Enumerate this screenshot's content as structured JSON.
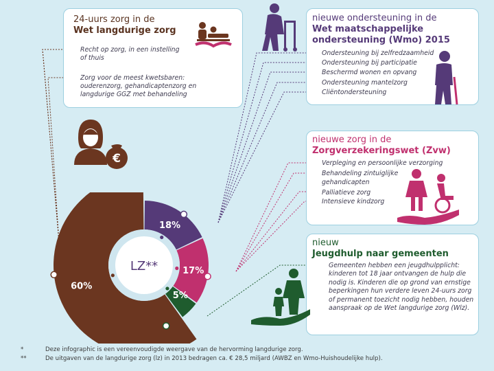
{
  "colors": {
    "background": "#d6ecf3",
    "brown": "#6b3620",
    "purple": "#553a78",
    "pink": "#c0306e",
    "green": "#1f5c2e",
    "ring": "#cfe6ef"
  },
  "wlz_card": {
    "title_line1": "24-uurs zorg in de",
    "title_line2": "Wet langdurige zorg",
    "icon": "care-bed-icon",
    "items": [
      "Recht op zorg, in een instelling",
      "of thuis",
      "Zorg voor de meest kwetsbaren:",
      "ouderenzorg, gehandicaptenzorg en",
      "langdurige GGZ met behandeling"
    ]
  },
  "wmo_card": {
    "title_line1": "nieuwe ondersteuning in de",
    "title_line2": "Wet maatschappelijke",
    "title_line3": "ondersteuning (Wmo) 2015",
    "icon": "elderly-walker-icon",
    "items": [
      "Ondersteuning bij zelfredzaamheid",
      "Ondersteuning bij participatie",
      "Beschermd wonen en opvang",
      "Ondersteuning mantelzorg",
      "Cliëntondersteuning"
    ]
  },
  "zvw_card": {
    "title_line1": "nieuwe zorg in de",
    "title_line2": "Zorgverzekeringswet (Zvw)",
    "icon": "wheelchair-care-icon",
    "items": [
      "Verpleging en persoonlijke verzorging",
      "Behandeling zintuiglijke",
      "gehandicapten",
      "Palliatieve zorg",
      "Intensieve kindzorg"
    ]
  },
  "jeugd_card": {
    "title_line1": "nieuw",
    "title_line2": "Jeugdhulp naar gemeenten",
    "icon": "family-hand-icon",
    "paragraph": "Gemeenten hebben een jeugdhulpplicht: kinderen tot 18 jaar ontvangen de hulp die nodig is. Kinderen die op grond van ernstige beperkingen hun verdere leven 24-uurs zorg of permanent toezicht nodig hebben, houden aanspraak op de Wet langdurige zorg (Wlz)."
  },
  "chart_data": {
    "type": "pie",
    "center_label": "LZ**",
    "title": "",
    "categories": [
      "Wlz",
      "Wmo",
      "Zvw",
      "Jeugdhulp"
    ],
    "values": [
      60,
      18,
      17,
      5
    ],
    "labels": [
      "60%",
      "18%",
      "17%",
      "5%"
    ]
  },
  "footnotes": [
    {
      "mark": "*",
      "text": "Deze infographic is een vereenvoudigde weergave van de hervorming langdurige zorg."
    },
    {
      "mark": "**",
      "text": "De uitgaven van de langdurige zorg (lz) in 2013 bedragen ca. € 28,5 miljard (AWBZ en Wmo-Huishoudelijke hulp)."
    }
  ]
}
